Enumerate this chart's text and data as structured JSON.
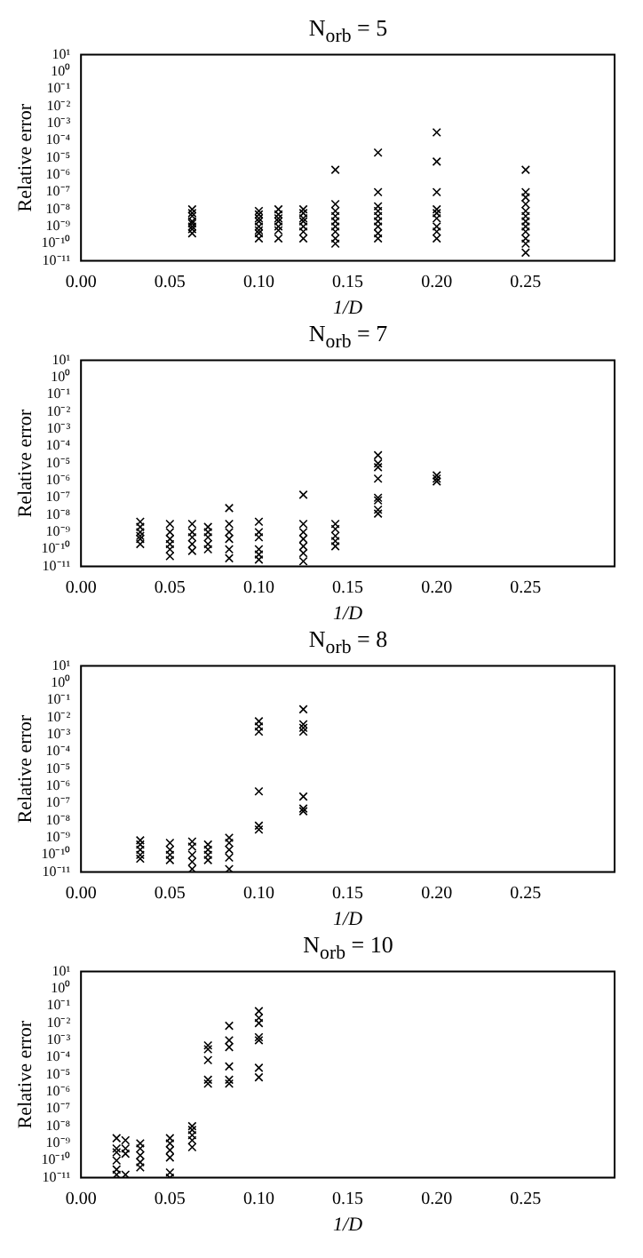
{
  "chart_data": [
    {
      "type": "scatter",
      "title": "N$_{orb}$ = 5",
      "xlabel": "1/D",
      "ylabel": "Relative error",
      "log": "y",
      "marker": "cross",
      "xlim": [
        0,
        0.3
      ],
      "ylim": [
        1e-11,
        10
      ],
      "xticks": [
        {
          "value": 0,
          "label": "0.00"
        },
        {
          "value": 0.05,
          "label": "0.05"
        },
        {
          "value": 0.1,
          "label": "0.10"
        },
        {
          "value": 0.15,
          "label": "0.15"
        },
        {
          "value": 0.2,
          "label": "0.20"
        },
        {
          "value": 0.25,
          "label": "0.25"
        }
      ],
      "yticks": [
        {
          "value": 1e-11,
          "label": "10⁻¹¹"
        },
        {
          "value": 1e-10,
          "label": "10⁻¹⁰"
        },
        {
          "value": 1e-09,
          "label": "10⁻⁹"
        },
        {
          "value": 1e-08,
          "label": "10⁻⁸"
        },
        {
          "value": 1e-07,
          "label": "10⁻⁷"
        },
        {
          "value": 1e-06,
          "label": "10⁻⁶"
        },
        {
          "value": 1e-05,
          "label": "10⁻⁵"
        },
        {
          "value": 0.0001,
          "label": "10⁻⁴"
        },
        {
          "value": 0.001,
          "label": "10⁻³"
        },
        {
          "value": 0.01,
          "label": "10⁻²"
        },
        {
          "value": 0.1,
          "label": "10⁻¹"
        },
        {
          "value": 1,
          "label": "10⁰"
        },
        {
          "value": 10,
          "label": "10¹"
        }
      ],
      "series": [
        {
          "color": "#000000",
          "x": [
            0.0625,
            0.0625,
            0.0625,
            0.0625,
            0.0625,
            0.0625,
            0.0625,
            0.0625,
            0.1,
            0.1,
            0.1,
            0.1,
            0.1,
            0.1,
            0.1,
            0.1,
            0.111,
            0.111,
            0.111,
            0.111,
            0.111,
            0.111,
            0.111,
            0.125,
            0.125,
            0.125,
            0.125,
            0.125,
            0.125,
            0.125,
            0.143,
            0.143,
            0.143,
            0.143,
            0.143,
            0.143,
            0.143,
            0.143,
            0.143,
            0.167,
            0.167,
            0.167,
            0.167,
            0.167,
            0.167,
            0.167,
            0.167,
            0.167,
            0.2,
            0.2,
            0.2,
            0.2,
            0.2,
            0.2,
            0.2,
            0.2,
            0.2,
            0.25,
            0.25,
            0.25,
            0.25,
            0.25,
            0.25,
            0.25,
            0.25,
            0.25,
            0.25,
            0.25,
            0.25
          ],
          "values": [
            1e-08,
            6e-09,
            4e-09,
            2e-09,
            1.5e-09,
            1e-09,
            7e-10,
            4e-10,
            8e-09,
            5e-09,
            3e-09,
            2e-09,
            1e-09,
            6e-10,
            4e-10,
            2e-10,
            1e-08,
            5e-09,
            3e-09,
            2e-09,
            1e-09,
            6e-10,
            2e-10,
            1e-08,
            6e-09,
            3e-09,
            2e-09,
            1e-09,
            5e-10,
            2e-10,
            2e-06,
            2e-08,
            8e-09,
            4e-09,
            2e-09,
            1e-09,
            5e-10,
            2e-10,
            1e-10,
            2e-05,
            1e-07,
            1.5e-08,
            8e-09,
            4e-09,
            2e-09,
            1e-09,
            4e-10,
            2e-10,
            0.0003,
            6e-06,
            1e-07,
            1e-08,
            6e-09,
            3e-09,
            1e-09,
            5e-10,
            2e-10,
            2e-06,
            1e-07,
            5e-08,
            2e-08,
            8e-09,
            4e-09,
            2e-09,
            1e-09,
            5e-10,
            2e-10,
            1e-10,
            3e-11
          ]
        }
      ]
    },
    {
      "type": "scatter",
      "title": "N$_{orb}$ = 7",
      "xlabel": "1/D",
      "ylabel": "Relative error",
      "log": "y",
      "marker": "cross",
      "xlim": [
        0,
        0.3
      ],
      "ylim": [
        1e-11,
        10
      ],
      "xticks": [
        {
          "value": 0,
          "label": "0.00"
        },
        {
          "value": 0.05,
          "label": "0.05"
        },
        {
          "value": 0.1,
          "label": "0.10"
        },
        {
          "value": 0.15,
          "label": "0.15"
        },
        {
          "value": 0.2,
          "label": "0.20"
        },
        {
          "value": 0.25,
          "label": "0.25"
        }
      ],
      "yticks": [
        {
          "value": 1e-11,
          "label": "10⁻¹¹"
        },
        {
          "value": 1e-10,
          "label": "10⁻¹⁰"
        },
        {
          "value": 1e-09,
          "label": "10⁻⁹"
        },
        {
          "value": 1e-08,
          "label": "10⁻⁸"
        },
        {
          "value": 1e-07,
          "label": "10⁻⁷"
        },
        {
          "value": 1e-06,
          "label": "10⁻⁶"
        },
        {
          "value": 1e-05,
          "label": "10⁻⁵"
        },
        {
          "value": 0.0001,
          "label": "10⁻⁴"
        },
        {
          "value": 0.001,
          "label": "10⁻³"
        },
        {
          "value": 0.01,
          "label": "10⁻²"
        },
        {
          "value": 0.1,
          "label": "10⁻¹"
        },
        {
          "value": 1,
          "label": "10⁰"
        },
        {
          "value": 10,
          "label": "10¹"
        }
      ],
      "series": [
        {
          "color": "#000000",
          "x": [
            0.0333,
            0.0333,
            0.0333,
            0.0333,
            0.0333,
            0.0333,
            0.05,
            0.05,
            0.05,
            0.05,
            0.05,
            0.05,
            0.0625,
            0.0625,
            0.0625,
            0.0625,
            0.0625,
            0.0714,
            0.0714,
            0.0714,
            0.0714,
            0.0714,
            0.0833,
            0.0833,
            0.0833,
            0.0833,
            0.0833,
            0.0833,
            0.1,
            0.1,
            0.1,
            0.1,
            0.1,
            0.1,
            0.125,
            0.125,
            0.125,
            0.125,
            0.125,
            0.125,
            0.125,
            0.143,
            0.143,
            0.143,
            0.143,
            0.143,
            0.167,
            0.167,
            0.167,
            0.167,
            0.167,
            0.167,
            0.167,
            0.167,
            0.2,
            0.2,
            0.2
          ],
          "values": [
            4e-09,
            2e-09,
            1e-09,
            6e-10,
            4e-10,
            2e-10,
            3e-09,
            1e-09,
            4e-10,
            2e-10,
            1e-10,
            4e-11,
            3e-09,
            1e-09,
            5e-10,
            2e-10,
            8e-11,
            2e-09,
            1e-09,
            5e-10,
            2e-10,
            1e-10,
            2.5e-08,
            3e-09,
            1e-09,
            4e-10,
            1e-10,
            3e-11,
            4e-09,
            1e-09,
            5e-10,
            1e-10,
            5e-11,
            2.5e-11,
            1.5e-07,
            3e-09,
            1e-09,
            4e-10,
            1.5e-10,
            6e-11,
            2e-11,
            3e-09,
            1.5e-09,
            6e-10,
            3e-10,
            1.5e-10,
            3e-05,
            1e-05,
            6e-06,
            1.3e-06,
            1e-07,
            7e-08,
            2e-08,
            1.2e-08,
            2e-06,
            1.3e-06,
            9e-07
          ]
        }
      ]
    },
    {
      "type": "scatter",
      "title": "N$_{orb}$ = 8",
      "xlabel": "1/D",
      "ylabel": "Relative error",
      "log": "y",
      "marker": "cross",
      "xlim": [
        0,
        0.3
      ],
      "ylim": [
        1e-11,
        10
      ],
      "xticks": [
        {
          "value": 0,
          "label": "0.00"
        },
        {
          "value": 0.05,
          "label": "0.05"
        },
        {
          "value": 0.1,
          "label": "0.10"
        },
        {
          "value": 0.15,
          "label": "0.15"
        },
        {
          "value": 0.2,
          "label": "0.20"
        },
        {
          "value": 0.25,
          "label": "0.25"
        }
      ],
      "yticks": [
        {
          "value": 1e-11,
          "label": "10⁻¹¹"
        },
        {
          "value": 1e-10,
          "label": "10⁻¹⁰"
        },
        {
          "value": 1e-09,
          "label": "10⁻⁹"
        },
        {
          "value": 1e-08,
          "label": "10⁻⁸"
        },
        {
          "value": 1e-07,
          "label": "10⁻⁷"
        },
        {
          "value": 1e-06,
          "label": "10⁻⁶"
        },
        {
          "value": 1e-05,
          "label": "10⁻⁵"
        },
        {
          "value": 0.0001,
          "label": "10⁻⁴"
        },
        {
          "value": 0.001,
          "label": "10⁻³"
        },
        {
          "value": 0.01,
          "label": "10⁻²"
        },
        {
          "value": 0.1,
          "label": "10⁻¹"
        },
        {
          "value": 1,
          "label": "10⁰"
        },
        {
          "value": 10,
          "label": "10¹"
        }
      ],
      "series": [
        {
          "color": "#000000",
          "x": [
            0.0333,
            0.0333,
            0.0333,
            0.0333,
            0.0333,
            0.05,
            0.05,
            0.05,
            0.05,
            0.0625,
            0.0625,
            0.0625,
            0.0625,
            0.0625,
            0.0714,
            0.0714,
            0.0714,
            0.0714,
            0.0833,
            0.0833,
            0.0833,
            0.0833,
            0.0833,
            0.1,
            0.1,
            0.1,
            0.1,
            0.1,
            0.1,
            0.125,
            0.125,
            0.125,
            0.125,
            0.125,
            0.125,
            0.125
          ],
          "values": [
            7e-10,
            4e-10,
            2e-10,
            1e-10,
            6e-11,
            5e-10,
            2e-10,
            1e-10,
            5e-11,
            6e-10,
            3e-10,
            1e-10,
            4e-11,
            1.5e-11,
            4e-10,
            2e-10,
            1e-10,
            5e-11,
            1e-09,
            5e-10,
            2e-10,
            7e-11,
            1.5e-11,
            0.006,
            0.003,
            0.0015,
            5e-07,
            5e-09,
            3e-09,
            0.03,
            0.004,
            0.0025,
            0.0015,
            2.5e-07,
            5e-08,
            3.5e-08
          ]
        }
      ]
    },
    {
      "type": "scatter",
      "title": "N$_{orb}$ = 10",
      "xlabel": "1/D",
      "ylabel": "Relative error",
      "log": "y",
      "marker": "cross",
      "xlim": [
        0,
        0.3
      ],
      "ylim": [
        1e-11,
        10
      ],
      "xticks": [
        {
          "value": 0,
          "label": "0.00"
        },
        {
          "value": 0.05,
          "label": "0.05"
        },
        {
          "value": 0.1,
          "label": "0.10"
        },
        {
          "value": 0.15,
          "label": "0.15"
        },
        {
          "value": 0.2,
          "label": "0.20"
        },
        {
          "value": 0.25,
          "label": "0.25"
        }
      ],
      "yticks": [
        {
          "value": 1e-11,
          "label": "10⁻¹¹"
        },
        {
          "value": 1e-10,
          "label": "10⁻¹⁰"
        },
        {
          "value": 1e-09,
          "label": "10⁻⁹"
        },
        {
          "value": 1e-08,
          "label": "10⁻⁸"
        },
        {
          "value": 1e-07,
          "label": "10⁻⁷"
        },
        {
          "value": 1e-06,
          "label": "10⁻⁶"
        },
        {
          "value": 1e-05,
          "label": "10⁻⁵"
        },
        {
          "value": 0.0001,
          "label": "10⁻⁴"
        },
        {
          "value": 0.001,
          "label": "10⁻³"
        },
        {
          "value": 0.01,
          "label": "10⁻²"
        },
        {
          "value": 0.1,
          "label": "10⁻¹"
        },
        {
          "value": 1,
          "label": "10⁰"
        },
        {
          "value": 10,
          "label": "10¹"
        }
      ],
      "series": [
        {
          "color": "#000000",
          "x": [
            0.02,
            0.02,
            0.02,
            0.02,
            0.02,
            0.02,
            0.025,
            0.025,
            0.025,
            0.025,
            0.0333,
            0.0333,
            0.0333,
            0.0333,
            0.0333,
            0.05,
            0.05,
            0.05,
            0.05,
            0.05,
            0.05,
            0.0625,
            0.0625,
            0.0625,
            0.0625,
            0.0625,
            0.0714,
            0.0714,
            0.0714,
            0.0714,
            0.0714,
            0.0833,
            0.0833,
            0.0833,
            0.0833,
            0.0833,
            0.0833,
            0.1,
            0.1,
            0.1,
            0.1,
            0.1,
            0.1,
            0.1
          ],
          "values": [
            2e-09,
            5e-10,
            3e-10,
            1e-10,
            3e-11,
            1.5e-11,
            1.5e-09,
            5e-10,
            2.5e-10,
            1.5e-11,
            1e-09,
            5e-10,
            2e-10,
            8e-11,
            4e-11,
            2e-09,
            1e-09,
            4e-10,
            1.5e-10,
            2e-11,
            1e-11,
            1e-08,
            6e-09,
            3e-09,
            1.5e-09,
            6e-10,
            0.0005,
            0.0003,
            7e-05,
            5e-06,
            3e-06,
            0.007,
            0.001,
            0.0004,
            3e-05,
            5e-06,
            3e-06,
            0.05,
            0.02,
            0.01,
            0.0015,
            0.001,
            2.5e-05,
            7e-06
          ]
        }
      ]
    }
  ]
}
